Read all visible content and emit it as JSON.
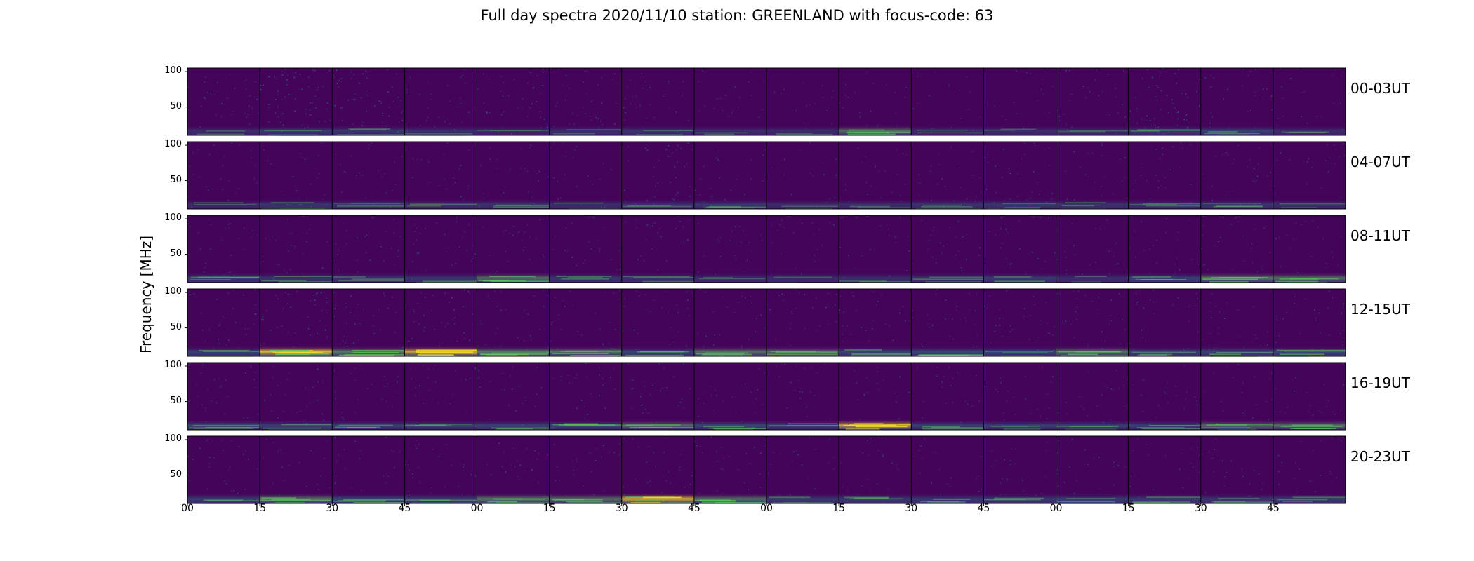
{
  "title": "Full day spectra 2020/11/10 station: GREENLAND with focus-code: 63",
  "colors": {
    "background": "#44045a",
    "noise_mid": "#3b528b",
    "noise_hi": "#21918c",
    "hot": "#5ec962",
    "peak": "#fde725",
    "divider": "#000000"
  },
  "chart_data": {
    "type": "heatmap",
    "colormap": "viridis",
    "ylabel": "Frequency [MHz]",
    "ylim": [
      10,
      105
    ],
    "yticks": [
      100,
      50
    ],
    "xticks": [
      "00",
      "15",
      "30",
      "45",
      "00",
      "15",
      "30",
      "45",
      "00",
      "15",
      "30",
      "45",
      "00",
      "15",
      "30",
      "45"
    ],
    "panels_per_row": 16,
    "rows": [
      {
        "label": "00-03UT",
        "burst": [
          0.05,
          0.25,
          0.18,
          0.12,
          0.05,
          0.1,
          0.15,
          0.05,
          0.05,
          0.45,
          0.05,
          0.05,
          0.05,
          0.2,
          0.3,
          0.05
        ],
        "noise": [
          0.4,
          0.65,
          0.55,
          0.35,
          0.45,
          0.4,
          0.35,
          0.25,
          0.2,
          0.25,
          0.2,
          0.2,
          0.35,
          0.65,
          0.35,
          0.25
        ]
      },
      {
        "label": "04-07UT",
        "burst": [
          0.05,
          0.2,
          0.15,
          0.12,
          0.15,
          0.1,
          0.1,
          0.2,
          0.05,
          0.1,
          0.15,
          0.2,
          0.15,
          0.15,
          0.2,
          0.1
        ],
        "noise": [
          0.3,
          0.25,
          0.25,
          0.25,
          0.3,
          0.25,
          0.45,
          0.3,
          0.2,
          0.25,
          0.3,
          0.4,
          0.3,
          0.3,
          0.3,
          0.25
        ]
      },
      {
        "label": "08-11UT",
        "burst": [
          0.25,
          0.2,
          0.15,
          0.2,
          0.5,
          0.2,
          0.15,
          0.1,
          0.1,
          0.1,
          0.15,
          0.25,
          0.1,
          0.35,
          0.6,
          0.5
        ],
        "noise": [
          0.3,
          0.3,
          0.3,
          0.35,
          0.3,
          0.3,
          0.3,
          0.25,
          0.25,
          0.25,
          0.3,
          0.3,
          0.25,
          0.3,
          0.3,
          0.25
        ]
      },
      {
        "label": "12-15UT",
        "burst": [
          0.35,
          0.95,
          0.6,
          0.8,
          0.6,
          0.55,
          0.35,
          0.5,
          0.45,
          0.35,
          0.4,
          0.35,
          0.55,
          0.3,
          0.35,
          0.4
        ],
        "noise": [
          0.35,
          0.5,
          0.45,
          0.45,
          0.35,
          0.35,
          0.35,
          0.35,
          0.35,
          0.35,
          0.35,
          0.35,
          0.35,
          0.35,
          0.35,
          0.35
        ]
      },
      {
        "label": "16-19UT",
        "burst": [
          0.4,
          0.3,
          0.3,
          0.3,
          0.35,
          0.4,
          0.45,
          0.4,
          0.3,
          0.75,
          0.3,
          0.3,
          0.3,
          0.3,
          0.45,
          0.5
        ],
        "noise": [
          0.35,
          0.3,
          0.3,
          0.25,
          0.3,
          0.3,
          0.3,
          0.25,
          0.25,
          0.25,
          0.25,
          0.25,
          0.25,
          0.25,
          0.25,
          0.25
        ]
      },
      {
        "label": "20-23UT",
        "burst": [
          0.3,
          0.55,
          0.4,
          0.3,
          0.6,
          0.5,
          0.85,
          0.5,
          0.25,
          0.25,
          0.25,
          0.25,
          0.3,
          0.25,
          0.2,
          0.25
        ],
        "noise": [
          0.3,
          0.3,
          0.3,
          0.3,
          0.3,
          0.3,
          0.35,
          0.35,
          0.25,
          0.25,
          0.25,
          0.25,
          0.25,
          0.25,
          0.25,
          0.25
        ]
      }
    ]
  }
}
